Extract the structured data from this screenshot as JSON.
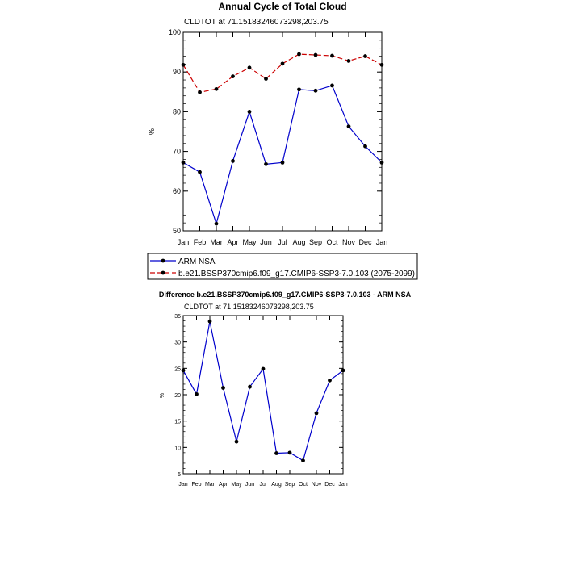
{
  "chart_data": [
    {
      "type": "line",
      "title": "Annual Cycle of Total Cloud",
      "subtitle": "CLDTOT at 71.15183246073298,203.75",
      "xlabel": "",
      "ylabel": "%",
      "ylim": [
        50,
        100
      ],
      "yticks": [
        50,
        60,
        70,
        80,
        90,
        100
      ],
      "categories": [
        "Jan",
        "Feb",
        "Mar",
        "Apr",
        "May",
        "Jun",
        "Jul",
        "Aug",
        "Sep",
        "Oct",
        "Nov",
        "Dec",
        "Jan"
      ],
      "series": [
        {
          "name": "ARM NSA",
          "color": "#0000cc",
          "dash": "none",
          "values": [
            67.2,
            64.8,
            51.8,
            67.6,
            80.0,
            66.8,
            67.2,
            85.6,
            85.3,
            86.6,
            76.3,
            71.3,
            67.2
          ]
        },
        {
          "name": "b.e21.BSSP370cmip6.f09_g17.CMIP6-SSP3-7.0.103 (2075-2099)",
          "color": "#cc0000",
          "dash": "6,3",
          "values": [
            91.8,
            84.9,
            85.7,
            88.9,
            91.1,
            88.3,
            92.1,
            94.5,
            94.3,
            94.1,
            92.8,
            94.0,
            91.8
          ]
        }
      ],
      "legend_position": "bottom"
    },
    {
      "type": "line",
      "title": "Difference b.e21.BSSP370cmip6.f09_g17.CMIP6-SSP3-7.0.103 - ARM NSA",
      "subtitle": "CLDTOT at 71.15183246073298,203.75",
      "xlabel": "",
      "ylabel": "%",
      "ylim": [
        5,
        35
      ],
      "yticks": [
        5,
        10,
        15,
        20,
        25,
        30,
        35
      ],
      "categories": [
        "Jan",
        "Feb",
        "Mar",
        "Apr",
        "May",
        "Jun",
        "Jul",
        "Aug",
        "Sep",
        "Oct",
        "Nov",
        "Dec",
        "Jan"
      ],
      "series": [
        {
          "name": "Difference",
          "color": "#0000cc",
          "dash": "none",
          "values": [
            24.6,
            20.1,
            33.9,
            21.3,
            11.1,
            21.5,
            24.9,
            8.9,
            9.0,
            7.5,
            16.5,
            22.7,
            24.6
          ]
        }
      ]
    }
  ]
}
